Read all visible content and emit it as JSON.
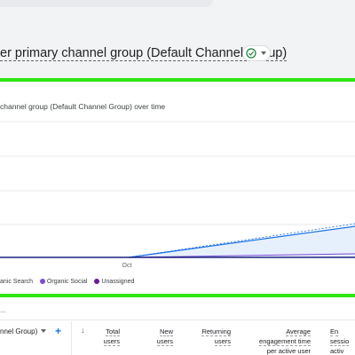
{
  "report": {
    "title_visible": "er primary channel group (Default Channel Group)"
  },
  "card": {
    "title": "channel group (Default Channel Group) over time"
  },
  "chart_data": {
    "type": "area",
    "x_tick_labels": [
      "Oct"
    ],
    "series": [
      {
        "name": "Organic Search",
        "color": "#1a73e8"
      },
      {
        "name": "Organic Social",
        "color": "#7b4bd6"
      },
      {
        "name": "Unassigned",
        "color": "#6a1b9a"
      }
    ],
    "legend_placement": "bottom-left",
    "grid": true
  },
  "legend": {
    "items": [
      "anic Search",
      "Organic Social",
      "Unassigned"
    ],
    "colors": [
      "#1a73e8",
      "#7b4bd6",
      "#6a1b9a"
    ]
  },
  "table": {
    "ellipsis": "...",
    "dimension_label": "nnel Group)",
    "add_symbol": "+",
    "sort_symbol": "↓",
    "columns": [
      {
        "line1": "Total",
        "line2": "users"
      },
      {
        "line1": "New",
        "line2": "users"
      },
      {
        "line1": "Returning",
        "line2": "users"
      },
      {
        "line1": "Average",
        "line2": "engagement time",
        "line3": "per active user"
      },
      {
        "line1": "En",
        "line2": "sessio",
        "line3": "activ"
      }
    ]
  },
  "colors": {
    "highlight": "#2fe512",
    "accent": "#1a73e8",
    "success": "#188038"
  }
}
